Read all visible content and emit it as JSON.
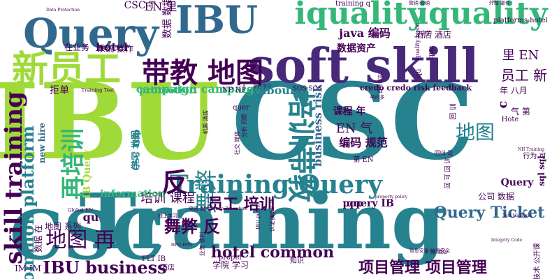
{
  "word_cloud": {
    "palette": {
      "purple": "#440154",
      "indigo": "#3b528b",
      "blue": "#31688e",
      "teal": "#26828e",
      "green": "#35b779",
      "lime": "#a0da39",
      "dark": "#482878"
    },
    "words": [
      {
        "text": "IBU",
        "color": "lime",
        "size": 150
      },
      {
        "text": "CSC",
        "color": "teal",
        "size": 150
      },
      {
        "text": "Training",
        "color": "teal",
        "size": 110
      },
      {
        "text": "CSC",
        "color": "teal",
        "size": 96
      },
      {
        "text": "soft skill",
        "color": "dark",
        "size": 68
      },
      {
        "text": "Query",
        "color": "blue",
        "size": 58
      },
      {
        "text": "IBU",
        "color": "blue",
        "size": 54
      },
      {
        "text": "新员工",
        "color": "lime",
        "size": 52
      },
      {
        "text": "iquality",
        "color": "green",
        "size": 44
      },
      {
        "text": "iquality",
        "color": "green",
        "size": 44
      },
      {
        "text": "skill training",
        "color": "purple",
        "size": 34
      },
      {
        "text": "再培训",
        "color": "green",
        "size": 34
      },
      {
        "text": "带教 地图",
        "color": "purple",
        "size": 40
      },
      {
        "text": "培训带教",
        "color": "teal",
        "size": 40
      },
      {
        "text": "Training Query",
        "color": "teal",
        "size": 36
      },
      {
        "text": "反",
        "color": "purple",
        "size": 38
      },
      {
        "text": "舞弊",
        "color": "teal",
        "size": 32
      },
      {
        "text": "common platform",
        "color": "teal",
        "size": 24
      },
      {
        "text": "IBU business",
        "color": "purple",
        "size": 24
      },
      {
        "text": "项目管理 项目管理",
        "color": "purple",
        "size": 22
      },
      {
        "text": "hotel common",
        "color": "purple",
        "size": 22
      },
      {
        "text": "Query Ticket",
        "color": "blue",
        "size": 22
      },
      {
        "text": "舞弊 反",
        "color": "purple",
        "size": 24
      },
      {
        "text": "员工 培训",
        "color": "purple",
        "size": 22
      },
      {
        "text": "地图 再",
        "color": "purple",
        "size": 30
      },
      {
        "text": "地图",
        "color": "teal",
        "size": 28
      },
      {
        "text": "campaign campaign",
        "color": "green",
        "size": 16
      },
      {
        "text": "business risk",
        "color": "blue",
        "size": 16
      },
      {
        "text": "里 EN",
        "color": "purple",
        "size": 18
      },
      {
        "text": "员工 新",
        "color": "purple",
        "size": 20
      },
      {
        "text": "hotel",
        "color": "purple",
        "size": 16
      },
      {
        "text": "CSC T",
        "color": "purple",
        "size": 14
      },
      {
        "text": "EN 里",
        "color": "purple",
        "size": 16
      },
      {
        "text": "数据 数据",
        "color": "purple",
        "size": 14
      },
      {
        "text": "java 编码",
        "color": "purple",
        "size": 16
      },
      {
        "text": "promotion",
        "color": "green",
        "size": 14
      },
      {
        "text": "Inbound",
        "color": "teal",
        "size": 16
      },
      {
        "text": "数据资产",
        "color": "purple",
        "size": 14
      },
      {
        "text": "credo credo risk feedback",
        "color": "purple",
        "size": 11
      },
      {
        "text": "课程 年",
        "color": "purple",
        "size": 14
      },
      {
        "text": "编码 规范",
        "color": "purple",
        "size": 16
      },
      {
        "text": "EN 气",
        "color": "purple",
        "size": 18
      },
      {
        "text": "培训 课程",
        "color": "purple",
        "size": 18
      },
      {
        "text": "query IB",
        "color": "purple",
        "size": 14
      },
      {
        "text": "pop",
        "color": "purple",
        "size": 14
      },
      {
        "text": "IB Query",
        "color": "lime",
        "size": 14
      },
      {
        "text": "information",
        "color": "green",
        "size": 14
      },
      {
        "text": "学习 地图",
        "color": "teal",
        "size": 13
      },
      {
        "text": "CSC Trip",
        "color": "teal",
        "size": 12
      },
      {
        "text": "拒单",
        "color": "purple",
        "size": 14
      },
      {
        "text": "new hire",
        "color": "blue",
        "size": 12
      },
      {
        "text": "在业务",
        "color": "purple",
        "size": 12
      },
      {
        "text": "系统 操作",
        "color": "purple",
        "size": 12
      },
      {
        "text": "qu",
        "color": "purple",
        "size": 16
      },
      {
        "text": "地图 系列",
        "color": "purple",
        "size": 12
      },
      {
        "text": "数据 在",
        "color": "purple",
        "size": 12
      },
      {
        "text": "sql sql",
        "color": "purple",
        "size": 12
      },
      {
        "text": "公司 数据",
        "color": "purple",
        "size": 12
      },
      {
        "text": "Query",
        "color": "purple",
        "size": 14
      },
      {
        "text": "c",
        "color": "purple",
        "size": 18
      },
      {
        "text": "酒店 酒店",
        "color": "purple",
        "size": 12
      },
      {
        "text": "年 八月",
        "color": "purple",
        "size": 12
      },
      {
        "text": "platforms hotel",
        "color": "purple",
        "size": 10
      },
      {
        "text": "training q",
        "color": "purple",
        "size": 10
      },
      {
        "text": "IM IM",
        "color": "purple",
        "size": 12
      },
      {
        "text": "FLT IB",
        "color": "purple",
        "size": 10
      },
      {
        "text": "学院 学习",
        "color": "purple",
        "size": 12
      },
      {
        "text": "proper",
        "color": "purple",
        "size": 10
      },
      {
        "text": "酒店",
        "color": "purple",
        "size": 10
      },
      {
        "text": "知识",
        "color": "purple",
        "size": 10
      },
      {
        "text": "Hote",
        "color": "purple",
        "size": 10
      },
      {
        "text": "回 训",
        "color": "purple",
        "size": 10
      },
      {
        "text": "气 第",
        "color": "purple",
        "size": 12
      },
      {
        "text": "行为 可",
        "color": "purple",
        "size": 10
      },
      {
        "text": "第 EN",
        "color": "purple",
        "size": 10
      },
      {
        "text": "技术 公开课",
        "color": "purple",
        "size": 10
      },
      {
        "text": "NP NP",
        "color": "purple",
        "size": 10
      },
      {
        "text": "SOS SOS",
        "color": "purple",
        "size": 9
      },
      {
        "text": "quer",
        "color": "purple",
        "size": 10
      },
      {
        "text": "Training Test",
        "color": "purple",
        "size": 7
      },
      {
        "text": "分析 问题",
        "color": "purple",
        "size": 8
      },
      {
        "text": "社交 媒体",
        "color": "purple",
        "size": 8
      },
      {
        "text": "机票 酒店",
        "color": "purple",
        "size": 8
      },
      {
        "text": "线上学习",
        "color": "purple",
        "size": 7
      },
      {
        "text": "Global EN",
        "color": "purple",
        "size": 7
      },
      {
        "text": "电话 国内",
        "color": "purple",
        "size": 7
      },
      {
        "text": "信息安全 信息安全",
        "color": "purple",
        "size": 7
      },
      {
        "text": "门票 酒店",
        "color": "purple",
        "size": 7
      },
      {
        "text": "HPO HPO",
        "color": "purple",
        "size": 6
      },
      {
        "text": "Test Malaysia",
        "color": "purple",
        "size": 6
      },
      {
        "text": "营销 营销",
        "color": "purple",
        "size": 7
      },
      {
        "text": "外部 邮件",
        "color": "purple",
        "size": 7
      },
      {
        "text": "英语 学习",
        "color": "purple",
        "size": 6
      },
      {
        "text": "Data Protection",
        "color": "purple",
        "size": 6
      },
      {
        "text": "Integrity Code",
        "color": "purple",
        "size": 6
      },
      {
        "text": "NH Training",
        "color": "purple",
        "size": 6
      },
      {
        "text": "que",
        "color": "purple",
        "size": 10
      },
      {
        "text": "qu",
        "color": "purple",
        "size": 10
      },
      {
        "text": "中的",
        "color": "purple",
        "size": 8
      },
      {
        "text": "iquality basic",
        "color": "purple",
        "size": 8
      },
      {
        "text": "认证 java",
        "color": "purple",
        "size": 8
      },
      {
        "text": "IBU public",
        "color": "purple",
        "size": 7
      },
      {
        "text": "回 可 回 训",
        "color": "purple",
        "size": 9
      },
      {
        "text": "业务 谈判",
        "color": "purple",
        "size": 8
      },
      {
        "text": "阅读 实践",
        "color": "purple",
        "size": 7
      },
      {
        "text": "Aero Procedure",
        "color": "purple",
        "size": 6
      },
      {
        "text": "property policy",
        "color": "purple",
        "size": 6
      },
      {
        "text": "回归 及",
        "color": "purple",
        "size": 8
      },
      {
        "text": "自然语言",
        "color": "purple",
        "size": 7
      },
      {
        "text": "单向多",
        "color": "purple",
        "size": 7
      }
    ]
  }
}
